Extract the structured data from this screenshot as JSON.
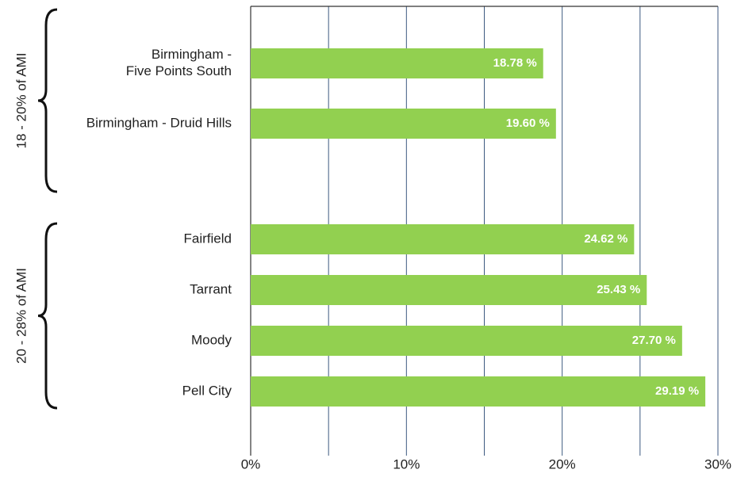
{
  "chart_data": {
    "type": "bar",
    "orientation": "horizontal",
    "color": "#92d050",
    "groups": [
      {
        "label": "18 - 20% of AMI",
        "categories": [
          [
            "Birmingham -",
            "Five Points South"
          ],
          "Birmingham - Druid Hills"
        ],
        "values": [
          18.78,
          19.6
        ],
        "value_labels": [
          "18.78 %",
          "19.60 %"
        ]
      },
      {
        "label": "20 - 28% of AMI",
        "categories": [
          "Fairfield",
          "Tarrant",
          "Moody",
          "Pell City"
        ],
        "values": [
          24.62,
          25.43,
          27.7,
          29.19
        ],
        "value_labels": [
          "24.62 %",
          "25.43 %",
          "27.70 %",
          "29.19 %"
        ]
      }
    ],
    "xlim": [
      0,
      30
    ],
    "xticks": [
      {
        "value": 0,
        "label": "0%"
      },
      {
        "value": 10,
        "label": "10%"
      },
      {
        "value": 20,
        "label": "20%"
      },
      {
        "value": 30,
        "label": "30%"
      }
    ],
    "minor_xticks": [
      5,
      15,
      25
    ],
    "grid": true
  }
}
